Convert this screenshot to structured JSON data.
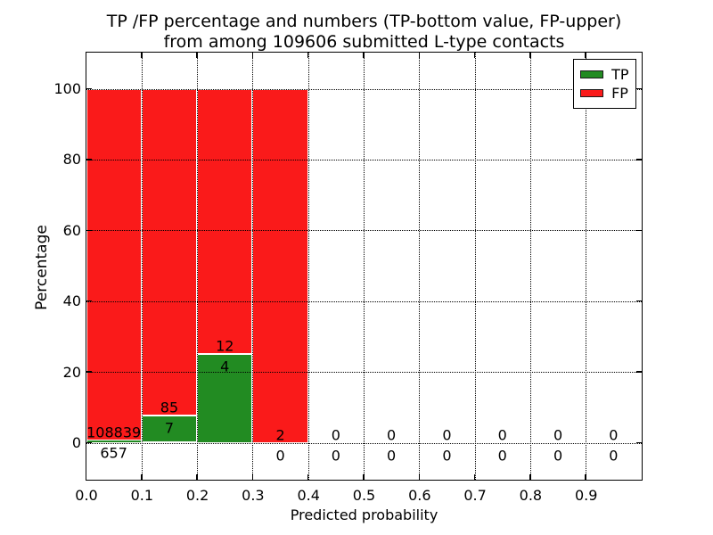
{
  "figure": {
    "title_line1": "TP /FP percentage and numbers (TP-bottom value, FP-upper)",
    "title_line2": "from among 109606 submitted L-type contacts"
  },
  "chart_data": {
    "type": "bar",
    "stacked": true,
    "title": "TP /FP percentage and numbers (TP-bottom value, FP-upper) from among 109606 submitted L-type contacts",
    "xlabel": "Predicted probability",
    "ylabel": "Percentage",
    "xlim": [
      0.0,
      1.0
    ],
    "ylim": [
      -10.3,
      110.3
    ],
    "x_ticks": [
      "0.0",
      "0.1",
      "0.2",
      "0.3",
      "0.4",
      "0.5",
      "0.6",
      "0.7",
      "0.8",
      "0.9"
    ],
    "y_ticks": [
      "0",
      "20",
      "40",
      "60",
      "80",
      "100"
    ],
    "grid": "dotted both axes",
    "legend_position": "upper right",
    "legend": [
      {
        "name": "TP",
        "color": "#228b22"
      },
      {
        "name": "FP",
        "color": "#fa1a1a"
      }
    ],
    "total_submitted": 109606,
    "note": "bars are percentage-stacked per bin; labels show raw counts, TP bottom value, FP upper value",
    "bins": [
      {
        "x_start": 0.0,
        "x_end": 0.1,
        "tp_count": 657,
        "fp_count": 108839,
        "tp_pct": 0.6,
        "fp_pct": 99.4
      },
      {
        "x_start": 0.1,
        "x_end": 0.2,
        "tp_count": 7,
        "fp_count": 85,
        "tp_pct": 7.6,
        "fp_pct": 92.4
      },
      {
        "x_start": 0.2,
        "x_end": 0.3,
        "tp_count": 4,
        "fp_count": 12,
        "tp_pct": 25.0,
        "fp_pct": 75.0
      },
      {
        "x_start": 0.3,
        "x_end": 0.4,
        "tp_count": 0,
        "fp_count": 2,
        "tp_pct": 0.0,
        "fp_pct": 100.0
      },
      {
        "x_start": 0.4,
        "x_end": 0.5,
        "tp_count": 0,
        "fp_count": 0,
        "tp_pct": 0.0,
        "fp_pct": 0.0
      },
      {
        "x_start": 0.5,
        "x_end": 0.6,
        "tp_count": 0,
        "fp_count": 0,
        "tp_pct": 0.0,
        "fp_pct": 0.0
      },
      {
        "x_start": 0.6,
        "x_end": 0.7,
        "tp_count": 0,
        "fp_count": 0,
        "tp_pct": 0.0,
        "fp_pct": 0.0
      },
      {
        "x_start": 0.7,
        "x_end": 0.8,
        "tp_count": 0,
        "fp_count": 0,
        "tp_pct": 0.0,
        "fp_pct": 0.0
      },
      {
        "x_start": 0.8,
        "x_end": 0.9,
        "tp_count": 0,
        "fp_count": 0,
        "tp_pct": 0.0,
        "fp_pct": 0.0
      },
      {
        "x_start": 0.9,
        "x_end": 1.0,
        "tp_count": 0,
        "fp_count": 0,
        "tp_pct": 0.0,
        "fp_pct": 0.0
      }
    ]
  },
  "colors": {
    "tp_green": "#228b22",
    "fp_red": "#fa1a1a",
    "grid": "#000000",
    "background": "#ffffff",
    "text": "#000000"
  }
}
